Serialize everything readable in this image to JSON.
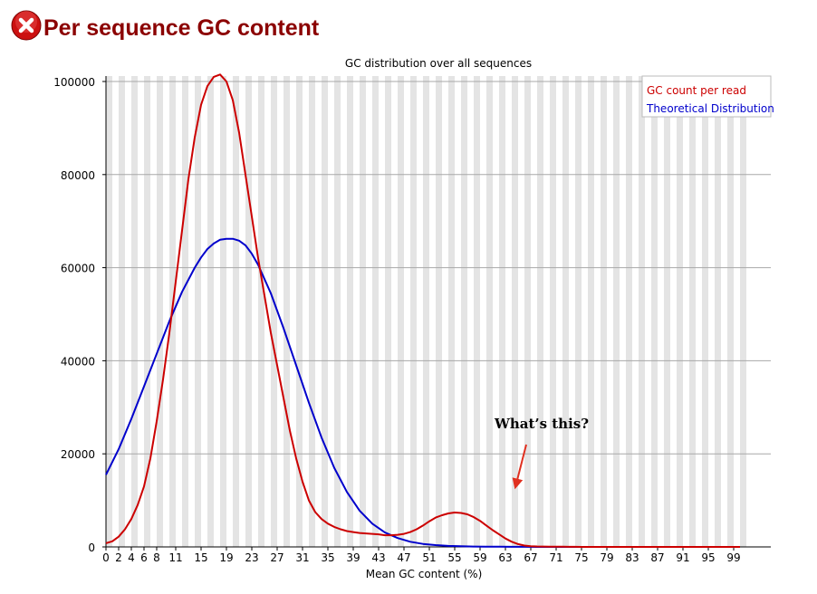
{
  "header": {
    "title": "Per sequence GC content",
    "status_icon": "fail-icon",
    "status_color": "#cc0000"
  },
  "chart_data": {
    "type": "line",
    "title": "GC distribution over all sequences",
    "xlabel": "Mean GC content (%)",
    "ylabel": "",
    "xlim": [
      0,
      100
    ],
    "ylim": [
      0,
      100000
    ],
    "x_ticks": [
      0,
      2,
      4,
      6,
      8,
      11,
      15,
      19,
      23,
      27,
      31,
      35,
      39,
      43,
      47,
      51,
      55,
      59,
      63,
      67,
      71,
      75,
      79,
      83,
      87,
      91,
      95,
      99
    ],
    "y_ticks": [
      0,
      20000,
      40000,
      60000,
      80000,
      100000
    ],
    "grid": true,
    "legend_position": "top-right",
    "series": [
      {
        "name": "GC count per read",
        "color": "#cc0000",
        "x": [
          0,
          1,
          2,
          3,
          4,
          5,
          6,
          7,
          8,
          9,
          10,
          11,
          12,
          13,
          14,
          15,
          16,
          17,
          18,
          19,
          20,
          21,
          22,
          23,
          24,
          25,
          26,
          27,
          28,
          29,
          30,
          31,
          32,
          33,
          34,
          35,
          36,
          37,
          38,
          39,
          40,
          41,
          42,
          43,
          44,
          45,
          46,
          47,
          48,
          49,
          50,
          51,
          52,
          53,
          54,
          55,
          56,
          57,
          58,
          59,
          60,
          61,
          62,
          63,
          64,
          65,
          66,
          67,
          68,
          69,
          70,
          71,
          72,
          73,
          74,
          75,
          80,
          85,
          90,
          95,
          100
        ],
        "values": [
          800,
          1200,
          2200,
          3800,
          6000,
          9000,
          13000,
          19000,
          27000,
          36000,
          46000,
          57000,
          68000,
          79000,
          88000,
          95000,
          99000,
          101000,
          101500,
          100000,
          96000,
          89000,
          80000,
          71000,
          62000,
          54000,
          46000,
          39000,
          32000,
          25000,
          19000,
          14000,
          10000,
          7500,
          6000,
          5000,
          4300,
          3800,
          3400,
          3200,
          3000,
          2900,
          2800,
          2700,
          2500,
          2500,
          2600,
          2800,
          3200,
          3800,
          4600,
          5500,
          6300,
          6800,
          7200,
          7400,
          7300,
          7000,
          6400,
          5600,
          4600,
          3600,
          2700,
          1800,
          1100,
          600,
          300,
          150,
          100,
          80,
          60,
          40,
          30,
          20,
          10,
          0,
          0,
          0,
          0,
          0,
          0
        ]
      },
      {
        "name": "Theoretical Distribution",
        "color": "#0000cc",
        "x": [
          0,
          2,
          4,
          6,
          8,
          10,
          12,
          14,
          15,
          16,
          17,
          18,
          19,
          20,
          21,
          22,
          23,
          24,
          26,
          28,
          30,
          32,
          34,
          36,
          38,
          40,
          42,
          44,
          46,
          48,
          50,
          52,
          54,
          56,
          58,
          60,
          62,
          64,
          66,
          68,
          70,
          75,
          80,
          85,
          90,
          95,
          100
        ],
        "values": [
          15500,
          21000,
          27500,
          34500,
          41500,
          48500,
          54800,
          60000,
          62200,
          64000,
          65200,
          66000,
          66200,
          66200,
          65800,
          64800,
          63000,
          60600,
          54500,
          47000,
          39000,
          31000,
          23500,
          17000,
          11800,
          7800,
          5000,
          3100,
          1900,
          1100,
          650,
          380,
          220,
          130,
          80,
          50,
          30,
          20,
          10,
          5,
          0,
          0,
          0,
          0,
          0,
          0,
          0
        ]
      }
    ],
    "annotations": [
      {
        "text": "What’s this?",
        "x": 61.5,
        "y": 16000,
        "arrow_to": [
          60,
          7500
        ]
      }
    ]
  }
}
